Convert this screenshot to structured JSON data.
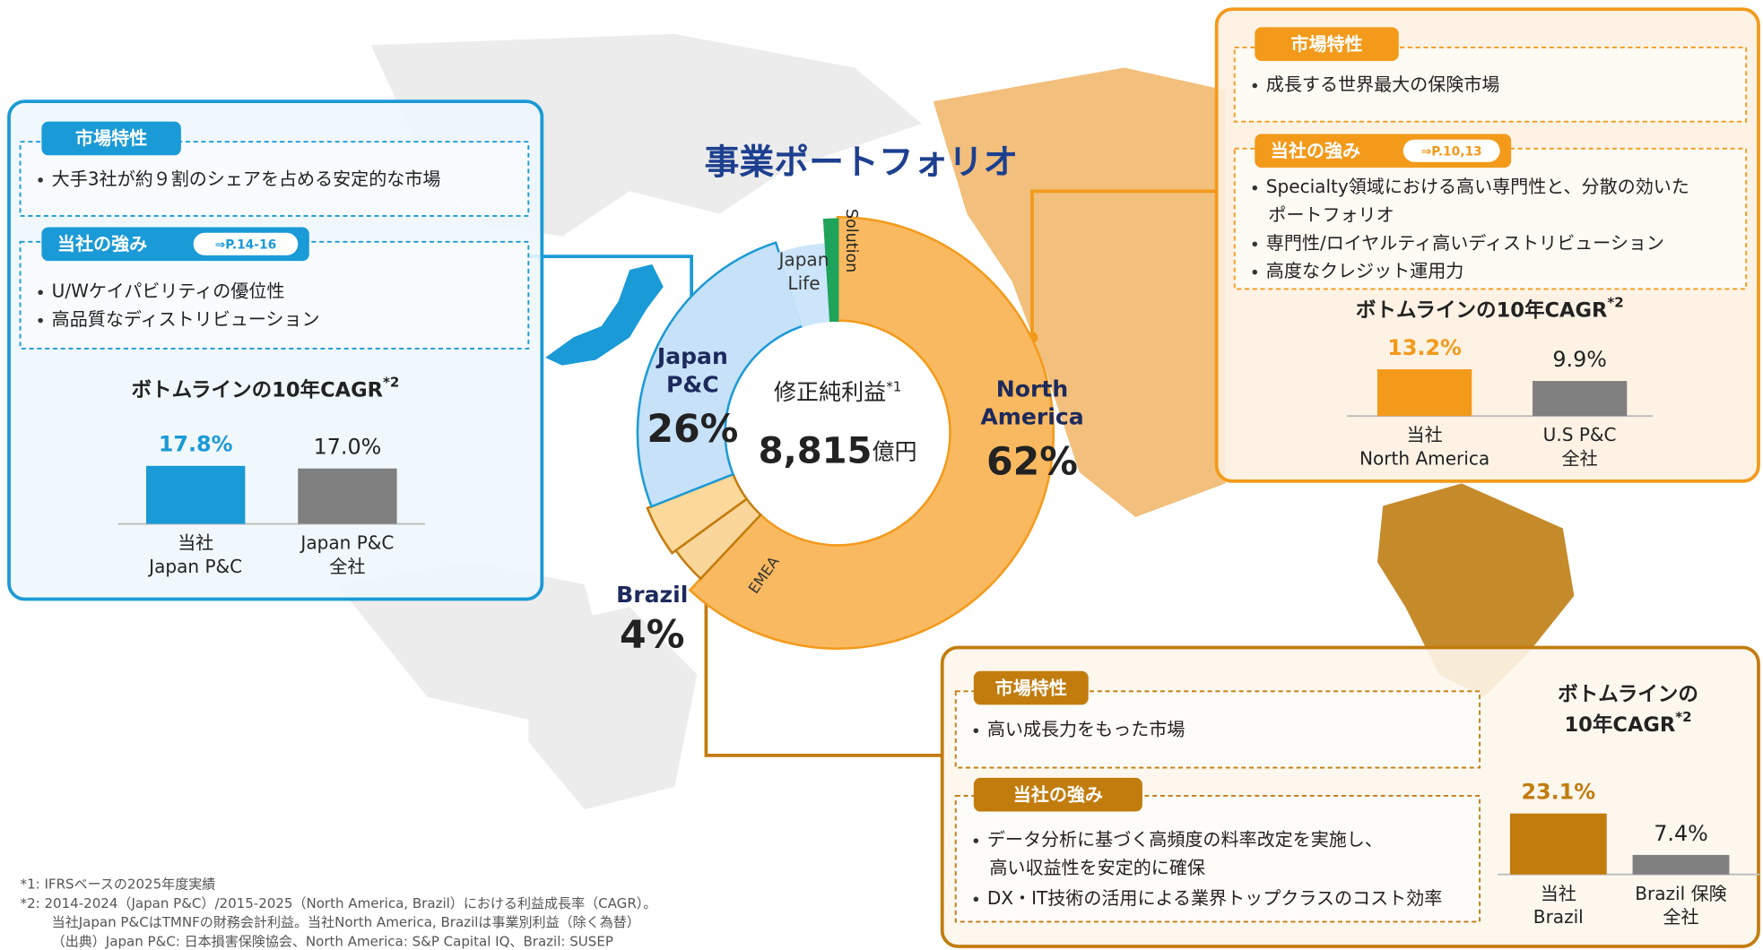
{
  "title": "事業ポートフォリオ",
  "chart_data": [
    {
      "type": "donut",
      "categories": [
        [
          "North",
          "America"
        ],
        [
          "EMEA"
        ],
        [
          "Brazil"
        ],
        [
          "Japan",
          "P&C"
        ],
        [
          "Japan",
          "Life"
        ],
        [
          "Solution"
        ]
      ],
      "values": [
        62,
        3,
        4,
        26,
        4,
        1
      ],
      "value_labels": [
        "62%",
        null,
        "4%",
        "26%",
        null,
        null
      ],
      "colors": [
        "#f9b960",
        "#fbd69b",
        "#fcd99a",
        "#c6e1f8",
        "#cce5fa",
        "#1fa35a"
      ],
      "center_label": "修正純利益",
      "center_note": "*1",
      "center_value": "8,815",
      "center_unit": "億円"
    },
    {
      "type": "bar",
      "title": [
        "ボトムラインの10年CAGR"
      ],
      "title_note": "*2",
      "categories": [
        [
          "当社",
          "Japan P&C"
        ],
        [
          "Japan P&C",
          "全社"
        ]
      ],
      "values": [
        17.8,
        17.0
      ],
      "value_labels": [
        "17.8%",
        "17.0%"
      ],
      "colors": [
        "#1a9ad6",
        "#808080"
      ]
    },
    {
      "type": "bar",
      "title": [
        "ボトムラインの10年CAGR"
      ],
      "title_note": "*2",
      "categories": [
        [
          "当社",
          "North America"
        ],
        [
          "U.S P&C",
          "全社"
        ]
      ],
      "values": [
        13.2,
        9.9
      ],
      "value_labels": [
        "13.2%",
        "9.9%"
      ],
      "colors": [
        "#f39a1b",
        "#808080"
      ]
    },
    {
      "type": "bar",
      "title": [
        "ボトムラインの",
        "10年CAGR"
      ],
      "title_note": "*2",
      "categories": [
        [
          "当社",
          "Brazil"
        ],
        [
          "Brazil 保険",
          "全社"
        ]
      ],
      "values": [
        23.1,
        7.4
      ],
      "value_labels": [
        "23.1%",
        "7.4%"
      ],
      "colors": [
        "#c27c0e",
        "#808080"
      ]
    }
  ],
  "panels": [
    {
      "market": {
        "label": "市場特性",
        "bullets": [
          [
            "大手3社が約９割のシェアを占める安定的な市場"
          ]
        ]
      },
      "strength": {
        "label": "当社の強み",
        "ref": "⇒P.14-16",
        "bullets": [
          [
            "U/Wケイパビリティの優位性"
          ],
          [
            "高品質なディストリビューション"
          ]
        ]
      }
    },
    {
      "market": {
        "label": "市場特性",
        "bullets": [
          [
            "成長する世界最大の保険市場"
          ]
        ]
      },
      "strength": {
        "label": "当社の強み",
        "ref": "⇒P.10,13",
        "bullets": [
          [
            "Specialty領域における高い専門性と、分散の効いた",
            "ポートフォリオ"
          ],
          [
            "専門性/ロイヤルティ高いディストリビューション"
          ],
          [
            "高度なクレジット運用力"
          ]
        ]
      }
    },
    {
      "market": {
        "label": "市場特性",
        "bullets": [
          [
            "高い成長力をもった市場"
          ]
        ]
      },
      "strength": {
        "label": "当社の強み",
        "bullets": [
          [
            "データ分析に基づく高頻度の料率改定を実施し、",
            "高い収益性を安定的に確保"
          ],
          [
            "DX・IT技術の活用による業界トップクラスのコスト効率"
          ]
        ]
      }
    }
  ],
  "footnotes": [
    "*1: IFRSベースの2025年度実績",
    "*2: 2014-2024（Japan P&C）/2015-2025（North America, Brazil）における利益成長率（CAGR）。",
    "当社Japan P&CはTMNFの財務会計利益。当社North America, Brazilは事業別利益（除く為替）",
    "（出典）Japan P&C: 日本損害保険協会、North America: S&P Capital IQ、Brazil: SUSEP"
  ]
}
